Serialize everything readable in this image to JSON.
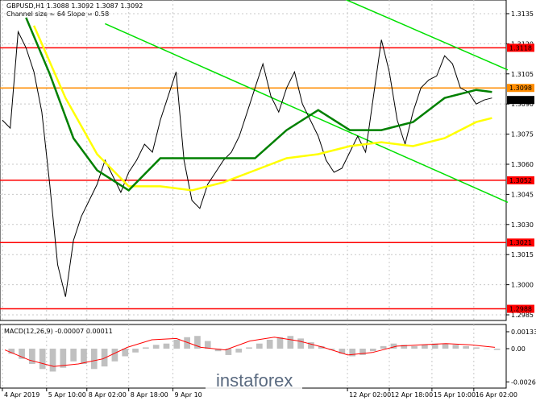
{
  "chart_data": {
    "type": "line",
    "title": "GBPUSD,H1  1.3088 1.3092 1.3087 1.3092",
    "subtitle": "Channel size = 64 Slope = 0.58",
    "watermark": "instaforex",
    "xlim": [
      -0.3,
      63.8
    ],
    "ylim": [
      1.29822,
      1.31418
    ],
    "yticks": [
      {
        "value": 1.3135,
        "label": "1.3135"
      },
      {
        "value": 1.312,
        "label": "1.3120"
      },
      {
        "value": 1.3105,
        "label": "1.3105"
      },
      {
        "value": 1.309,
        "label": "1.3090"
      },
      {
        "value": 1.3075,
        "label": "1.3075"
      },
      {
        "value": 1.306,
        "label": "1.3060"
      },
      {
        "value": 1.3045,
        "label": "1.3045"
      },
      {
        "value": 1.303,
        "label": "1.3030"
      },
      {
        "value": 1.3015,
        "label": "1.3015"
      },
      {
        "value": 1.3,
        "label": "1.3000"
      },
      {
        "value": 1.2985,
        "label": "1.2985"
      }
    ],
    "xticks": [
      {
        "value": 0,
        "label": "4 Apr 2019"
      },
      {
        "value": 5.6,
        "label": "5 Apr 10:00"
      },
      {
        "value": 10.7,
        "label": "8 Apr 02:00"
      },
      {
        "value": 16,
        "label": "8 Apr 18:00"
      },
      {
        "value": 21.6,
        "label": "9 Apr 10"
      },
      {
        "value": 43.7,
        "label": "12 Apr 02:00"
      },
      {
        "value": 49,
        "label": "12 Apr 18:00"
      },
      {
        "value": 54.4,
        "label": "15 Apr 10:00"
      },
      {
        "value": 59.7,
        "label": "16 Apr 02:00"
      }
    ],
    "grid": true,
    "series": [
      {
        "color": "#000000",
        "values": [
          1.3082,
          1.3078,
          1.3126,
          1.3118,
          1.3106,
          1.3086,
          1.305,
          1.301,
          1.2994,
          1.3022,
          1.3034,
          1.3042,
          1.305,
          1.3062,
          1.3054,
          1.3046,
          1.3056,
          1.3062,
          1.307,
          1.3066,
          1.3082,
          1.3094,
          1.3106,
          1.3062,
          1.3042,
          1.3038,
          1.305,
          1.3056,
          1.3062,
          1.3066,
          1.3074,
          1.3086,
          1.3098,
          1.311,
          1.3094,
          1.3086,
          1.3098,
          1.3106,
          1.309,
          1.3082,
          1.3074,
          1.3062,
          1.3056,
          1.3058,
          1.3066,
          1.3074,
          1.3066,
          1.3094,
          1.3122,
          1.3106,
          1.3082,
          1.307,
          1.3086,
          1.3098,
          1.3102,
          1.3104,
          1.3114,
          1.311,
          1.3098,
          1.3096,
          1.309,
          1.3092,
          1.3093
        ]
      },
      {
        "color": "#ffff00",
        "x": [
          4,
          8,
          12,
          16,
          20,
          24,
          28,
          32,
          36,
          40,
          44,
          48,
          52,
          56,
          60,
          62
        ],
        "values": [
          1.3129,
          1.3093,
          1.3065,
          1.3049,
          1.3049,
          1.3047,
          1.3051,
          1.3057,
          1.3063,
          1.3065,
          1.3069,
          1.3071,
          1.3069,
          1.3073,
          1.3081,
          1.3083
        ]
      },
      {
        "color": "#008000",
        "x": [
          3,
          6,
          9,
          12,
          16,
          20,
          24,
          28,
          32,
          36,
          40,
          44,
          48,
          52,
          56,
          60,
          62
        ],
        "values": [
          1.3133,
          1.3105,
          1.3073,
          1.3057,
          1.3047,
          1.3063,
          1.3063,
          1.3063,
          1.3063,
          1.3077,
          1.3087,
          1.3077,
          1.3077,
          1.3081,
          1.3093,
          1.3097,
          1.3096
        ]
      }
    ],
    "trend_lines": [
      {
        "color": "#00e000",
        "x": [
          13,
          64
        ],
        "values": [
          1.313,
          1.3041
        ]
      },
      {
        "color": "#00e000",
        "x": [
          43.5,
          64
        ],
        "values": [
          1.3142,
          1.3107
        ]
      }
    ],
    "levels": [
      {
        "value": 1.3118,
        "label": "1.3118",
        "color": "#ff0000"
      },
      {
        "value": 1.3052,
        "label": "1.3052",
        "color": "#ff0000"
      },
      {
        "value": 1.3021,
        "label": "1.3021",
        "color": "#ff0000"
      },
      {
        "value": 1.2988,
        "label": "1.2988",
        "color": "#ff0000"
      },
      {
        "value": 1.3098,
        "label": "1.3098",
        "color": "#ff8c00"
      },
      {
        "value": 1.3092,
        "label": "1.3092",
        "color": "#000000"
      }
    ],
    "macd": {
      "type": "bar",
      "title": "MACD(12,26,9) -0.00007 0.00011",
      "ylim": [
        -0.0031,
        0.0019
      ],
      "yticks": [
        {
          "value": 0.00133,
          "label": "0.00133"
        },
        {
          "value": 0,
          "label": "0.00"
        },
        {
          "value": -0.00261,
          "label": "-0.00261"
        }
      ],
      "color": "#c0c0c0",
      "values": [
        -0.0004,
        -0.0008,
        -0.0012,
        -0.0016,
        -0.0018,
        -0.0015,
        -0.001,
        -0.0012,
        -0.0016,
        -0.0014,
        -0.001,
        -0.0006,
        -0.0003,
        0.0001,
        0.0003,
        0.0004,
        0.0007,
        0.0009,
        0.001,
        0.0006,
        -0.0002,
        -0.0005,
        -0.0003,
        0.0001,
        0.0004,
        0.0007,
        0.0009,
        0.001,
        0.0008,
        0.0005,
        0.0002,
        -0.0001,
        -0.0004,
        -0.0006,
        -0.0005,
        -0.0002,
        0.0002,
        0.0004,
        0.0003,
        0.0002,
        0.0003,
        0.0004,
        0.0004,
        0.0003,
        0.0002,
        0.0001,
        0,
        -0.0001
      ],
      "signal": {
        "color": "#ff0000",
        "values": [
          -0.0001,
          -0.0009,
          -0.0014,
          -0.0012,
          -0.0008,
          0.0001,
          0.0007,
          0.0008,
          0.0001,
          -0.0001,
          0.0006,
          0.0009,
          0.0006,
          0.0001,
          -0.0005,
          -0.0003,
          0.0002,
          0.0003,
          0.0004,
          0.0003,
          0.0001
        ]
      }
    }
  }
}
